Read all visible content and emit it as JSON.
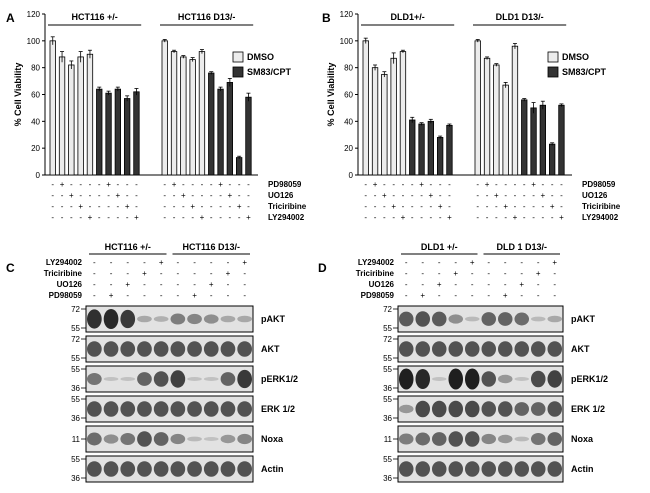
{
  "panels": {
    "A": "A",
    "B": "B",
    "C": "C",
    "D": "D"
  },
  "chart_data": [
    {
      "id": "A",
      "type": "bar",
      "ylabel": "% Cell Viability",
      "ylim": [
        0,
        120
      ],
      "yticks": [
        0,
        20,
        40,
        60,
        80,
        100,
        120
      ],
      "group_labels": [
        "HCT116 +/-",
        "HCT116 D13/-"
      ],
      "legend": [
        "DMSO",
        "SM83/CPT"
      ],
      "treatments": [
        "PD98059",
        "UO126",
        "Triciribine",
        "LY294002"
      ],
      "sign_rows": [
        [
          "-",
          "+",
          "-",
          "-",
          "-",
          "-",
          "+",
          "-",
          "-",
          "-",
          "-",
          "+",
          "-",
          "-",
          "-",
          "-",
          "+",
          "-",
          "-",
          "-"
        ],
        [
          "-",
          "-",
          "+",
          "-",
          "-",
          "-",
          "-",
          "+",
          "-",
          "-",
          "-",
          "-",
          "+",
          "-",
          "-",
          "-",
          "-",
          "+",
          "-",
          "-"
        ],
        [
          "-",
          "-",
          "-",
          "+",
          "-",
          "-",
          "-",
          "-",
          "+",
          "-",
          "-",
          "-",
          "-",
          "+",
          "-",
          "-",
          "-",
          "-",
          "+",
          "-"
        ],
        [
          "-",
          "-",
          "-",
          "-",
          "+",
          "-",
          "-",
          "-",
          "-",
          "+",
          "-",
          "-",
          "-",
          "-",
          "+",
          "-",
          "-",
          "-",
          "-",
          "+"
        ]
      ],
      "series": [
        {
          "name": "DMSO",
          "values": [
            100,
            88,
            82,
            88,
            90,
            null,
            null,
            null,
            null,
            null,
            100,
            92,
            88,
            86,
            92,
            null,
            null,
            null,
            null,
            null
          ]
        },
        {
          "name": "SM83/CPT",
          "values": [
            null,
            null,
            null,
            null,
            null,
            64,
            61,
            64,
            57,
            62,
            null,
            null,
            null,
            null,
            null,
            76,
            64,
            69,
            13,
            58
          ]
        }
      ],
      "errors": [
        3,
        4,
        3,
        4,
        3,
        1.5,
        1.5,
        1.5,
        2,
        2.5,
        1,
        1,
        1,
        1.5,
        1.5,
        1,
        1.5,
        3,
        1,
        3
      ]
    },
    {
      "id": "B",
      "type": "bar",
      "ylabel": "% Cell Viability",
      "ylim": [
        0,
        120
      ],
      "yticks": [
        0,
        20,
        40,
        60,
        80,
        100,
        120
      ],
      "group_labels": [
        "DLD1+/-",
        "DLD1 D13/-"
      ],
      "legend": [
        "DMSO",
        "SM83/CPT"
      ],
      "treatments": [
        "PD98059",
        "UO126",
        "Triciribine",
        "LY294002"
      ],
      "sign_rows": [
        [
          "-",
          "+",
          "-",
          "-",
          "-",
          "-",
          "+",
          "-",
          "-",
          "-",
          "-",
          "+",
          "-",
          "-",
          "-",
          "-",
          "+",
          "-",
          "-",
          "-"
        ],
        [
          "-",
          "-",
          "+",
          "-",
          "-",
          "-",
          "-",
          "+",
          "-",
          "-",
          "-",
          "-",
          "+",
          "-",
          "-",
          "-",
          "-",
          "+",
          "-",
          "-"
        ],
        [
          "-",
          "-",
          "-",
          "+",
          "-",
          "-",
          "-",
          "-",
          "+",
          "-",
          "-",
          "-",
          "-",
          "+",
          "-",
          "-",
          "-",
          "-",
          "+",
          "-"
        ],
        [
          "-",
          "-",
          "-",
          "-",
          "+",
          "-",
          "-",
          "-",
          "-",
          "+",
          "-",
          "-",
          "-",
          "-",
          "+",
          "-",
          "-",
          "-",
          "-",
          "+"
        ]
      ],
      "series": [
        {
          "name": "DMSO",
          "values": [
            100,
            80,
            75,
            87,
            92,
            null,
            null,
            null,
            null,
            null,
            100,
            87,
            82,
            67,
            96,
            null,
            null,
            null,
            null,
            null
          ]
        },
        {
          "name": "SM83/CPT",
          "values": [
            null,
            null,
            null,
            null,
            null,
            41,
            38,
            40,
            28,
            37,
            null,
            null,
            null,
            null,
            null,
            56,
            50,
            52,
            23,
            52
          ]
        }
      ],
      "errors": [
        2,
        2,
        2,
        4,
        1,
        2,
        1,
        1.5,
        1,
        1,
        1,
        1,
        1,
        2,
        2,
        1,
        4,
        3,
        1,
        1
      ]
    }
  ],
  "blots": [
    {
      "id": "C",
      "group_labels": [
        "HCT116 +/-",
        "HCT116 D13/-"
      ],
      "treatment_rows": [
        {
          "label": "LY294002",
          "signs": [
            "-",
            "-",
            "-",
            "-",
            "+",
            "-",
            "-",
            "-",
            "-",
            "+"
          ]
        },
        {
          "label": "Triciribine",
          "signs": [
            "-",
            "-",
            "-",
            "+",
            "-",
            "-",
            "-",
            "-",
            "+",
            "-"
          ]
        },
        {
          "label": "UO126",
          "signs": [
            "-",
            "-",
            "+",
            "-",
            "-",
            "-",
            "-",
            "+",
            "-",
            "-"
          ]
        },
        {
          "label": "PD98059",
          "signs": [
            "-",
            "+",
            "-",
            "-",
            "-",
            "-",
            "+",
            "-",
            "-",
            "-"
          ]
        }
      ],
      "rows": [
        {
          "label": "pAKT",
          "markers": [
            "72",
            "55"
          ],
          "lanes": [
            0.9,
            0.95,
            0.85,
            0.2,
            0.15,
            0.45,
            0.4,
            0.35,
            0.2,
            0.2
          ]
        },
        {
          "label": "AKT",
          "markers": [
            "72",
            "55"
          ],
          "lanes": [
            0.7,
            0.7,
            0.7,
            0.7,
            0.7,
            0.7,
            0.7,
            0.7,
            0.7,
            0.7
          ]
        },
        {
          "label": "pERK1/2",
          "markers": [
            "55",
            "36"
          ],
          "lanes": [
            0.5,
            0.05,
            0.05,
            0.6,
            0.7,
            0.8,
            0.05,
            0.05,
            0.6,
            0.85
          ]
        },
        {
          "label": "ERK 1/2",
          "markers": [
            "55",
            "36"
          ],
          "lanes": [
            0.7,
            0.7,
            0.7,
            0.7,
            0.7,
            0.7,
            0.7,
            0.7,
            0.7,
            0.7
          ]
        },
        {
          "label": "Noxa",
          "markers": [
            "11"
          ],
          "lanes": [
            0.55,
            0.35,
            0.5,
            0.7,
            0.6,
            0.4,
            0.1,
            0.05,
            0.3,
            0.4
          ]
        },
        {
          "label": "Actin",
          "markers": [
            "55",
            "36"
          ],
          "lanes": [
            0.7,
            0.7,
            0.7,
            0.7,
            0.7,
            0.7,
            0.7,
            0.7,
            0.7,
            0.7
          ]
        }
      ]
    },
    {
      "id": "D",
      "group_labels": [
        "DLD1 +/-",
        "DLD 1 D13/-"
      ],
      "treatment_rows": [
        {
          "label": "LY294002",
          "signs": [
            "-",
            "-",
            "-",
            "-",
            "+",
            "-",
            "-",
            "-",
            "-",
            "+"
          ]
        },
        {
          "label": "Triciribine",
          "signs": [
            "-",
            "-",
            "-",
            "+",
            "-",
            "-",
            "-",
            "-",
            "+",
            "-"
          ]
        },
        {
          "label": "UO126",
          "signs": [
            "-",
            "-",
            "+",
            "-",
            "-",
            "-",
            "-",
            "+",
            "-",
            "-"
          ]
        },
        {
          "label": "PD98059",
          "signs": [
            "-",
            "+",
            "-",
            "-",
            "-",
            "-",
            "+",
            "-",
            "-",
            "-"
          ]
        }
      ],
      "rows": [
        {
          "label": "pAKT",
          "markers": [
            "72",
            "55"
          ],
          "lanes": [
            0.65,
            0.7,
            0.65,
            0.35,
            0.1,
            0.6,
            0.6,
            0.55,
            0.1,
            0.2
          ]
        },
        {
          "label": "AKT",
          "markers": [
            "72",
            "55"
          ],
          "lanes": [
            0.7,
            0.7,
            0.7,
            0.7,
            0.7,
            0.7,
            0.7,
            0.7,
            0.7,
            0.7
          ]
        },
        {
          "label": "pERK1/2",
          "markers": [
            "55",
            "36"
          ],
          "lanes": [
            1.0,
            0.95,
            0.05,
            1.0,
            1.0,
            0.7,
            0.3,
            0.05,
            0.75,
            0.8
          ]
        },
        {
          "label": "ERK 1/2",
          "markers": [
            "55",
            "36"
          ],
          "lanes": [
            0.3,
            0.75,
            0.75,
            0.75,
            0.75,
            0.7,
            0.7,
            0.6,
            0.6,
            0.7
          ]
        },
        {
          "label": "Noxa",
          "markers": [
            "11"
          ],
          "lanes": [
            0.45,
            0.55,
            0.6,
            0.7,
            0.7,
            0.4,
            0.3,
            0.1,
            0.5,
            0.6
          ]
        },
        {
          "label": "Actin",
          "markers": [
            "55",
            "36"
          ],
          "lanes": [
            0.7,
            0.7,
            0.7,
            0.7,
            0.7,
            0.7,
            0.7,
            0.7,
            0.7,
            0.7
          ]
        }
      ]
    }
  ]
}
